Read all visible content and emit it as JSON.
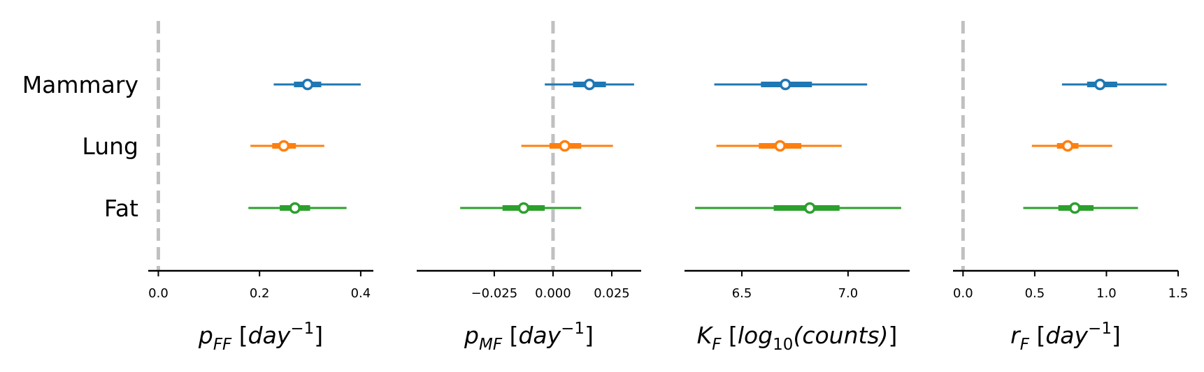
{
  "chart_data": {
    "type": "forest",
    "categories": [
      "Mammary",
      "Lung",
      "Fat"
    ],
    "colors": {
      "Mammary": "#1f77b4",
      "Lung": "#ff7f0e",
      "Fat": "#2ca02c"
    },
    "reference_line": {
      "value": 0,
      "color": "#c0c0c0",
      "style": "dashed"
    },
    "panels": [
      {
        "id": "pFF",
        "xlabel": {
          "base": "p",
          "sub": "FF",
          "unit_pre": " [",
          "unit_it": "day",
          "sup": "−1",
          "unit_post": "]"
        },
        "xlim": [
          -0.02,
          0.425
        ],
        "xticks": [
          0.0,
          0.2,
          0.4
        ],
        "xtick_labels": [
          "0.0",
          "0.2",
          "0.4"
        ],
        "show_ref": true,
        "estimates": [
          {
            "category": "Mammary",
            "mean": 0.295,
            "hdi_50": [
              0.268,
              0.322
            ],
            "hdi_94": [
              0.228,
              0.4
            ]
          },
          {
            "category": "Lung",
            "mean": 0.248,
            "hdi_50": [
              0.225,
              0.272
            ],
            "hdi_94": [
              0.182,
              0.328
            ]
          },
          {
            "category": "Fat",
            "mean": 0.27,
            "hdi_50": [
              0.24,
              0.3
            ],
            "hdi_94": [
              0.178,
              0.372
            ]
          }
        ]
      },
      {
        "id": "pMF",
        "xlabel": {
          "base": "p",
          "sub": "MF",
          "unit_pre": " [",
          "unit_it": "day",
          "sup": "−1",
          "unit_post": "]"
        },
        "xlim": [
          -0.058,
          0.0375
        ],
        "xticks": [
          -0.025,
          0.0,
          0.025
        ],
        "xtick_labels": [
          "−0.025",
          "0.000",
          "0.025"
        ],
        "show_ref": true,
        "estimates": [
          {
            "category": "Mammary",
            "mean": 0.0155,
            "hdi_50": [
              0.0085,
              0.0225
            ],
            "hdi_94": [
              -0.0035,
              0.0345
            ]
          },
          {
            "category": "Lung",
            "mean": 0.005,
            "hdi_50": [
              -0.0015,
              0.012
            ],
            "hdi_94": [
              -0.0135,
              0.0255
            ]
          },
          {
            "category": "Fat",
            "mean": -0.0125,
            "hdi_50": [
              -0.0215,
              -0.0035
            ],
            "hdi_94": [
              -0.0395,
              0.012
            ]
          }
        ]
      },
      {
        "id": "KF",
        "xlabel": {
          "base": "K",
          "sub": "F",
          "unit_pre": " [",
          "unit_it": "log",
          "unit_sub": "10",
          "unit_it2": "(counts)",
          "unit_post": "]"
        },
        "xlim": [
          6.23,
          7.29
        ],
        "xticks": [
          6.5,
          7.0
        ],
        "xtick_labels": [
          "6.5",
          "7.0"
        ],
        "show_ref": false,
        "estimates": [
          {
            "category": "Mammary",
            "mean": 6.705,
            "hdi_50": [
              6.59,
              6.83
            ],
            "hdi_94": [
              6.37,
              7.09
            ]
          },
          {
            "category": "Lung",
            "mean": 6.68,
            "hdi_50": [
              6.58,
              6.78
            ],
            "hdi_94": [
              6.38,
              6.97
            ]
          },
          {
            "category": "Fat",
            "mean": 6.82,
            "hdi_50": [
              6.65,
              6.96
            ],
            "hdi_94": [
              6.28,
              7.25
            ]
          }
        ]
      },
      {
        "id": "rF",
        "xlabel": {
          "base": "r",
          "sub": "F",
          "unit_pre": " [",
          "unit_it": "day",
          "sup": "−1",
          "unit_post": "]"
        },
        "xlim": [
          -0.07,
          1.5
        ],
        "xticks": [
          0.0,
          0.5,
          1.0,
          1.5
        ],
        "xtick_labels": [
          "0.0",
          "0.5",
          "1.0",
          "1.5"
        ],
        "show_ref": true,
        "estimates": [
          {
            "category": "Mammary",
            "mean": 0.955,
            "hdi_50": [
              0.865,
              1.075
            ],
            "hdi_94": [
              0.69,
              1.42
            ]
          },
          {
            "category": "Lung",
            "mean": 0.73,
            "hdi_50": [
              0.655,
              0.805
            ],
            "hdi_94": [
              0.48,
              1.04
            ]
          },
          {
            "category": "Fat",
            "mean": 0.78,
            "hdi_50": [
              0.665,
              0.91
            ],
            "hdi_94": [
              0.42,
              1.22
            ]
          }
        ]
      }
    ]
  }
}
